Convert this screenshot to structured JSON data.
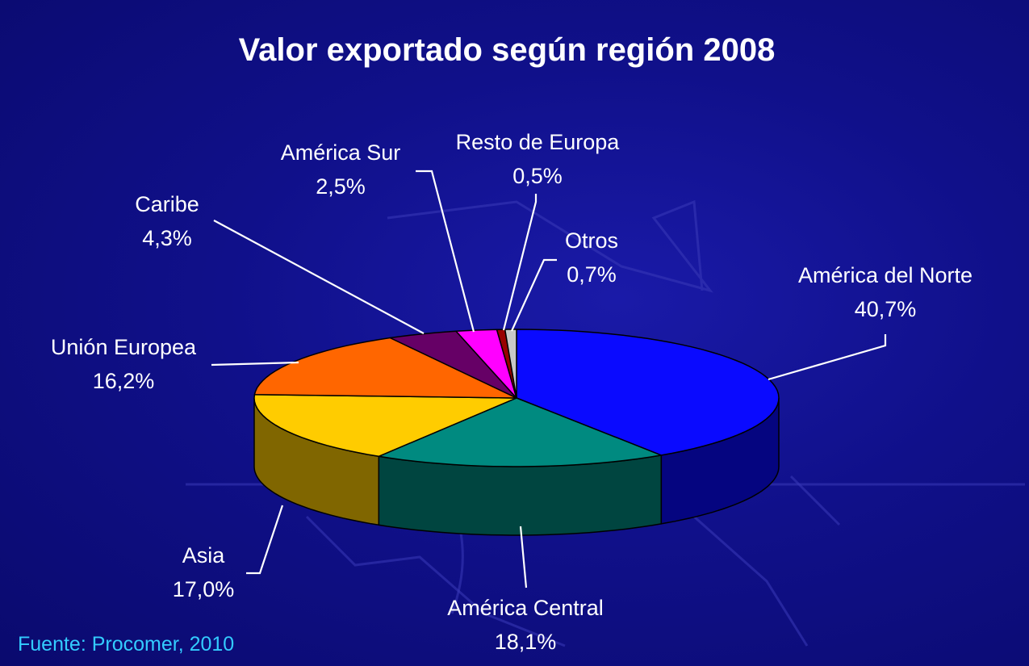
{
  "chart_data": {
    "type": "pie",
    "title": "Valor exportado según región  2008",
    "three_d": true,
    "slices": [
      {
        "name": "América del Norte",
        "value": 40.7,
        "label_value": "40,7%",
        "color": "#0a0aff"
      },
      {
        "name": "América Central",
        "value": 18.1,
        "label_value": "18,1%",
        "color": "#008a80"
      },
      {
        "name": "Asia",
        "value": 17.0,
        "label_value": "17,0%",
        "color": "#ffcc00"
      },
      {
        "name": "Unión Europea",
        "value": 16.2,
        "label_value": "16,2%",
        "color": "#ff6600"
      },
      {
        "name": "Caribe",
        "value": 4.3,
        "label_value": "4,3%",
        "color": "#660066"
      },
      {
        "name": "América Sur",
        "value": 2.5,
        "label_value": "2,5%",
        "color": "#ff00ff"
      },
      {
        "name": "Resto de Europa",
        "value": 0.5,
        "label_value": "0,5%",
        "color": "#990000"
      },
      {
        "name": "Otros",
        "value": 0.7,
        "label_value": "0,7%",
        "color": "#c8c8c8"
      }
    ]
  },
  "source": "Fuente: Procomer, 2010"
}
